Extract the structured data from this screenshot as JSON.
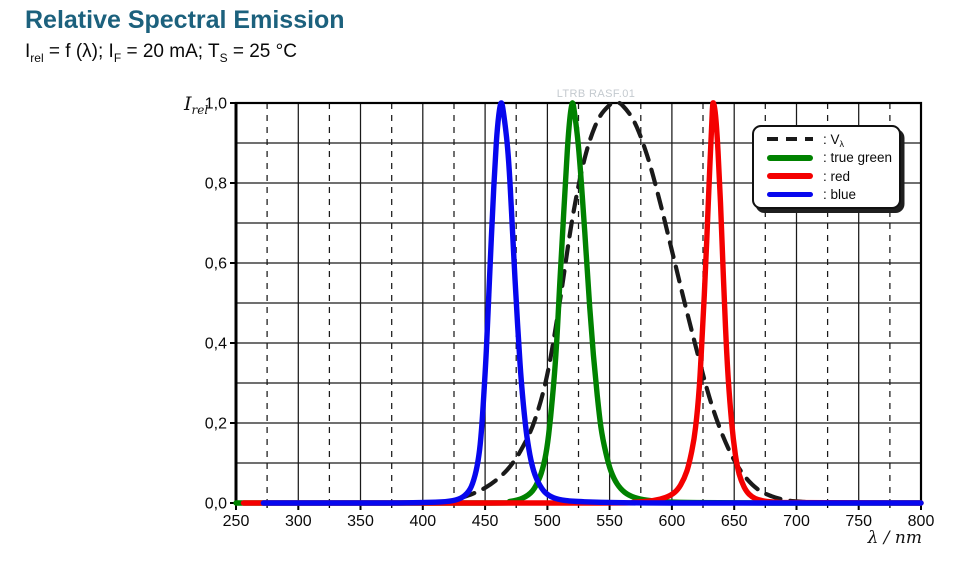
{
  "header": {
    "title": "Relative Spectral Emission",
    "subtitle": {
      "p1": "I",
      "s1": "rel",
      "p2": " = f (λ); I",
      "s2": "F",
      "p3": " = 20 mA; T",
      "s3": "S",
      "p4": " = 25 °C"
    }
  },
  "watermark": "LTRB RASF.01",
  "axes": {
    "x": {
      "label_lambda": "λ",
      "label_rest": " / nm",
      "tick_labels": [
        "250",
        "300",
        "350",
        "400",
        "450",
        "500",
        "550",
        "600",
        "650",
        "700",
        "750",
        "800"
      ]
    },
    "y": {
      "label_main": "I",
      "label_sub": "rel",
      "tick_labels": [
        "0,0",
        "0,2",
        "0,4",
        "0,6",
        "0,8",
        "1,0"
      ]
    }
  },
  "legend": {
    "items": [
      {
        "label": ": V",
        "label_sub": "λ",
        "style": "dashed",
        "color": "#1a1a1a"
      },
      {
        "label": ": true green",
        "label_sub": "",
        "style": "solid",
        "color": "#008200"
      },
      {
        "label": ": red",
        "label_sub": "",
        "style": "solid",
        "color": "#f40000"
      },
      {
        "label": ": blue",
        "label_sub": "",
        "style": "solid",
        "color": "#0707ee"
      }
    ]
  },
  "colors": {
    "title": "#1c617d",
    "grid": "#1a1a1a",
    "watermark": "#c4cacf"
  },
  "chart_data": {
    "type": "line",
    "title": "Relative Spectral Emission",
    "xlabel": "λ / nm",
    "ylabel": "I_rel",
    "xlim": [
      250,
      800
    ],
    "ylim": [
      0,
      1
    ],
    "x_major_tick_step": 50,
    "x_minor_grid_step": 25,
    "y_grid_step": 0.1,
    "grid": true,
    "legend_position": "upper right",
    "series": [
      {
        "name": "V_lambda",
        "style": "dashed",
        "color": "#1a1a1a",
        "points": [
          [
            430,
            0.012
          ],
          [
            440,
            0.023
          ],
          [
            450,
            0.038
          ],
          [
            460,
            0.06
          ],
          [
            470,
            0.091
          ],
          [
            480,
            0.139
          ],
          [
            490,
            0.208
          ],
          [
            500,
            0.323
          ],
          [
            510,
            0.503
          ],
          [
            520,
            0.71
          ],
          [
            530,
            0.862
          ],
          [
            540,
            0.954
          ],
          [
            550,
            0.995
          ],
          [
            555,
            1.0
          ],
          [
            560,
            0.995
          ],
          [
            570,
            0.952
          ],
          [
            580,
            0.87
          ],
          [
            590,
            0.757
          ],
          [
            600,
            0.631
          ],
          [
            610,
            0.503
          ],
          [
            620,
            0.381
          ],
          [
            630,
            0.265
          ],
          [
            640,
            0.175
          ],
          [
            650,
            0.107
          ],
          [
            660,
            0.061
          ],
          [
            670,
            0.032
          ],
          [
            680,
            0.017
          ],
          [
            690,
            0.008
          ],
          [
            700,
            0.004
          ],
          [
            710,
            0.002
          ]
        ]
      },
      {
        "name": "true-green",
        "style": "solid",
        "color": "#008200",
        "points": [
          [
            250,
            0
          ],
          [
            455,
            0
          ],
          [
            470,
            0.004
          ],
          [
            480,
            0.012
          ],
          [
            488,
            0.03
          ],
          [
            494,
            0.065
          ],
          [
            498,
            0.11
          ],
          [
            501,
            0.17
          ],
          [
            504,
            0.26
          ],
          [
            507,
            0.38
          ],
          [
            510,
            0.55
          ],
          [
            513,
            0.72
          ],
          [
            516,
            0.88
          ],
          [
            518,
            0.96
          ],
          [
            520,
            1.0
          ],
          [
            522,
            0.97
          ],
          [
            525,
            0.89
          ],
          [
            528,
            0.77
          ],
          [
            531,
            0.63
          ],
          [
            534,
            0.49
          ],
          [
            537,
            0.37
          ],
          [
            540,
            0.27
          ],
          [
            543,
            0.19
          ],
          [
            547,
            0.125
          ],
          [
            551,
            0.08
          ],
          [
            556,
            0.048
          ],
          [
            562,
            0.027
          ],
          [
            570,
            0.014
          ],
          [
            580,
            0.007
          ],
          [
            595,
            0.003
          ],
          [
            620,
            0.001
          ],
          [
            680,
            0
          ],
          [
            800,
            0
          ]
        ]
      },
      {
        "name": "red",
        "style": "solid",
        "color": "#f40000",
        "points": [
          [
            256,
            0
          ],
          [
            540,
            0
          ],
          [
            570,
            0.002
          ],
          [
            585,
            0.006
          ],
          [
            595,
            0.014
          ],
          [
            602,
            0.026
          ],
          [
            607,
            0.045
          ],
          [
            612,
            0.08
          ],
          [
            616,
            0.13
          ],
          [
            619,
            0.19
          ],
          [
            622,
            0.29
          ],
          [
            624,
            0.4
          ],
          [
            626,
            0.52
          ],
          [
            628,
            0.66
          ],
          [
            630,
            0.81
          ],
          [
            632,
            0.95
          ],
          [
            633,
            1.0
          ],
          [
            635,
            0.97
          ],
          [
            637,
            0.88
          ],
          [
            639,
            0.75
          ],
          [
            641,
            0.59
          ],
          [
            643,
            0.44
          ],
          [
            645,
            0.32
          ],
          [
            648,
            0.2
          ],
          [
            651,
            0.12
          ],
          [
            654,
            0.072
          ],
          [
            658,
            0.04
          ],
          [
            662,
            0.022
          ],
          [
            667,
            0.011
          ],
          [
            674,
            0.005
          ],
          [
            684,
            0.002
          ],
          [
            700,
            0.001
          ],
          [
            800,
            0
          ]
        ]
      },
      {
        "name": "blue",
        "style": "solid",
        "color": "#0707ee",
        "points": [
          [
            272,
            0
          ],
          [
            370,
            0
          ],
          [
            410,
            0.002
          ],
          [
            424,
            0.006
          ],
          [
            432,
            0.015
          ],
          [
            438,
            0.035
          ],
          [
            442,
            0.07
          ],
          [
            445,
            0.12
          ],
          [
            447,
            0.18
          ],
          [
            449,
            0.27
          ],
          [
            451,
            0.38
          ],
          [
            453,
            0.52
          ],
          [
            455,
            0.66
          ],
          [
            457,
            0.79
          ],
          [
            459,
            0.9
          ],
          [
            461,
            0.97
          ],
          [
            463,
            1.0
          ],
          [
            465,
            0.97
          ],
          [
            468,
            0.89
          ],
          [
            470,
            0.8
          ],
          [
            472,
            0.68
          ],
          [
            474,
            0.56
          ],
          [
            476,
            0.45
          ],
          [
            478,
            0.35
          ],
          [
            480,
            0.27
          ],
          [
            483,
            0.18
          ],
          [
            486,
            0.12
          ],
          [
            489,
            0.08
          ],
          [
            493,
            0.05
          ],
          [
            498,
            0.027
          ],
          [
            505,
            0.013
          ],
          [
            515,
            0.006
          ],
          [
            530,
            0.003
          ],
          [
            555,
            0.001
          ],
          [
            600,
            0
          ],
          [
            800,
            0
          ]
        ]
      }
    ]
  }
}
